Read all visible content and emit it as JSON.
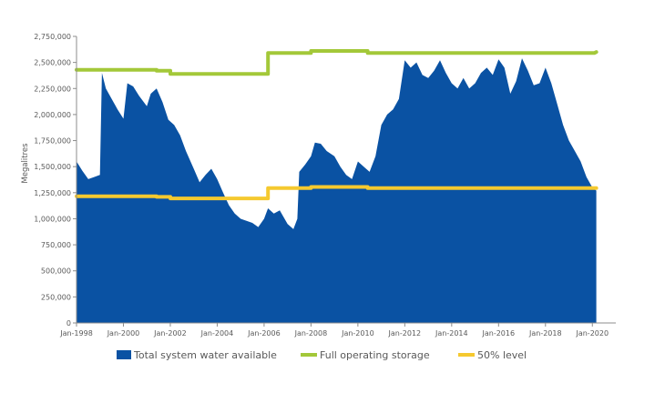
{
  "chart_data": {
    "type": "area",
    "title": "",
    "xlabel": "",
    "ylabel": "Megalitres",
    "ylim": [
      0,
      2750000
    ],
    "yticks": [
      0,
      250000,
      500000,
      750000,
      1000000,
      1250000,
      1500000,
      1750000,
      2000000,
      2250000,
      2500000,
      2750000
    ],
    "ytick_labels": [
      "0",
      "250,000",
      "500,000",
      "750,000",
      "1,000,000",
      "1,250,000",
      "1,500,000",
      "1,750,000",
      "2,000,000",
      "2,250,000",
      "2,500,000",
      "2,750,000"
    ],
    "xlim": [
      "1998-01",
      "2021-01"
    ],
    "xticks": [
      "1998-01",
      "2000-01",
      "2002-01",
      "2004-01",
      "2006-01",
      "2008-01",
      "2010-01",
      "2012-01",
      "2014-01",
      "2016-01",
      "2018-01",
      "2020-01"
    ],
    "xtick_labels": [
      "Jan-1998",
      "Jan-2000",
      "Jan-2002",
      "Jan-2004",
      "Jan-2006",
      "Jan-2008",
      "Jan-2010",
      "Jan-2012",
      "Jan-2014",
      "Jan-2016",
      "Jan-2018",
      "Jan-2020"
    ],
    "grid": false,
    "legend_position": "bottom",
    "series": [
      {
        "name": "Total system water available",
        "kind": "area",
        "color": "#0a52a3",
        "points": [
          [
            "1998-01",
            1550000
          ],
          [
            "1998-04",
            1460000
          ],
          [
            "1998-07",
            1380000
          ],
          [
            "1998-10",
            1400000
          ],
          [
            "1999-01",
            1420000
          ],
          [
            "1999-02",
            2400000
          ],
          [
            "1999-04",
            2250000
          ],
          [
            "1999-07",
            2150000
          ],
          [
            "1999-10",
            2050000
          ],
          [
            "2000-01",
            1960000
          ],
          [
            "2000-03",
            2300000
          ],
          [
            "2000-06",
            2270000
          ],
          [
            "2000-09",
            2180000
          ],
          [
            "2001-01",
            2080000
          ],
          [
            "2001-03",
            2200000
          ],
          [
            "2001-06",
            2250000
          ],
          [
            "2001-09",
            2120000
          ],
          [
            "2001-12",
            1950000
          ],
          [
            "2002-03",
            1900000
          ],
          [
            "2002-06",
            1800000
          ],
          [
            "2002-09",
            1650000
          ],
          [
            "2003-01",
            1480000
          ],
          [
            "2003-04",
            1350000
          ],
          [
            "2003-07",
            1420000
          ],
          [
            "2003-10",
            1480000
          ],
          [
            "2004-01",
            1380000
          ],
          [
            "2004-04",
            1250000
          ],
          [
            "2004-07",
            1130000
          ],
          [
            "2004-10",
            1050000
          ],
          [
            "2005-01",
            1000000
          ],
          [
            "2005-04",
            980000
          ],
          [
            "2005-07",
            960000
          ],
          [
            "2005-10",
            920000
          ],
          [
            "2006-01",
            1000000
          ],
          [
            "2006-03",
            1100000
          ],
          [
            "2006-06",
            1050000
          ],
          [
            "2006-09",
            1080000
          ],
          [
            "2007-01",
            950000
          ],
          [
            "2007-04",
            900000
          ],
          [
            "2007-06",
            1000000
          ],
          [
            "2007-07",
            1450000
          ],
          [
            "2007-10",
            1520000
          ],
          [
            "2008-01",
            1600000
          ],
          [
            "2008-03",
            1730000
          ],
          [
            "2008-06",
            1720000
          ],
          [
            "2008-09",
            1650000
          ],
          [
            "2009-01",
            1600000
          ],
          [
            "2009-04",
            1500000
          ],
          [
            "2009-07",
            1420000
          ],
          [
            "2009-10",
            1380000
          ],
          [
            "2010-01",
            1550000
          ],
          [
            "2010-04",
            1500000
          ],
          [
            "2010-07",
            1450000
          ],
          [
            "2010-10",
            1600000
          ],
          [
            "2011-01",
            1900000
          ],
          [
            "2011-04",
            2000000
          ],
          [
            "2011-07",
            2050000
          ],
          [
            "2011-10",
            2150000
          ],
          [
            "2012-01",
            2520000
          ],
          [
            "2012-04",
            2450000
          ],
          [
            "2012-07",
            2500000
          ],
          [
            "2012-10",
            2380000
          ],
          [
            "2013-01",
            2350000
          ],
          [
            "2013-04",
            2420000
          ],
          [
            "2013-07",
            2520000
          ],
          [
            "2013-10",
            2400000
          ],
          [
            "2014-01",
            2300000
          ],
          [
            "2014-04",
            2250000
          ],
          [
            "2014-07",
            2350000
          ],
          [
            "2014-10",
            2250000
          ],
          [
            "2015-01",
            2300000
          ],
          [
            "2015-04",
            2400000
          ],
          [
            "2015-07",
            2450000
          ],
          [
            "2015-10",
            2380000
          ],
          [
            "2016-01",
            2530000
          ],
          [
            "2016-04",
            2450000
          ],
          [
            "2016-07",
            2200000
          ],
          [
            "2016-10",
            2320000
          ],
          [
            "2017-01",
            2540000
          ],
          [
            "2017-04",
            2420000
          ],
          [
            "2017-07",
            2280000
          ],
          [
            "2017-10",
            2300000
          ],
          [
            "2018-01",
            2450000
          ],
          [
            "2018-04",
            2300000
          ],
          [
            "2018-07",
            2100000
          ],
          [
            "2018-10",
            1900000
          ],
          [
            "2019-01",
            1750000
          ],
          [
            "2019-04",
            1650000
          ],
          [
            "2019-07",
            1550000
          ],
          [
            "2019-10",
            1400000
          ],
          [
            "2020-01",
            1300000
          ],
          [
            "2020-03",
            1270000
          ]
        ]
      },
      {
        "name": "Full operating storage",
        "kind": "line",
        "color": "#a3c839",
        "points": [
          [
            "1998-01",
            2430000
          ],
          [
            "2001-06",
            2430000
          ],
          [
            "2001-06",
            2420000
          ],
          [
            "2002-01",
            2420000
          ],
          [
            "2002-01",
            2390000
          ],
          [
            "2006-03",
            2390000
          ],
          [
            "2006-03",
            2590000
          ],
          [
            "2008-01",
            2590000
          ],
          [
            "2008-01",
            2610000
          ],
          [
            "2010-06",
            2610000
          ],
          [
            "2010-06",
            2590000
          ],
          [
            "2020-02",
            2590000
          ],
          [
            "2020-03",
            2600000
          ]
        ]
      },
      {
        "name": "50% level",
        "kind": "line",
        "color": "#f5c92f",
        "points": [
          [
            "1998-01",
            1215000
          ],
          [
            "2001-06",
            1215000
          ],
          [
            "2001-06",
            1210000
          ],
          [
            "2002-01",
            1210000
          ],
          [
            "2002-01",
            1195000
          ],
          [
            "2006-03",
            1195000
          ],
          [
            "2006-03",
            1295000
          ],
          [
            "2008-01",
            1295000
          ],
          [
            "2008-01",
            1305000
          ],
          [
            "2010-06",
            1305000
          ],
          [
            "2010-06",
            1295000
          ],
          [
            "2020-03",
            1295000
          ]
        ]
      }
    ]
  }
}
